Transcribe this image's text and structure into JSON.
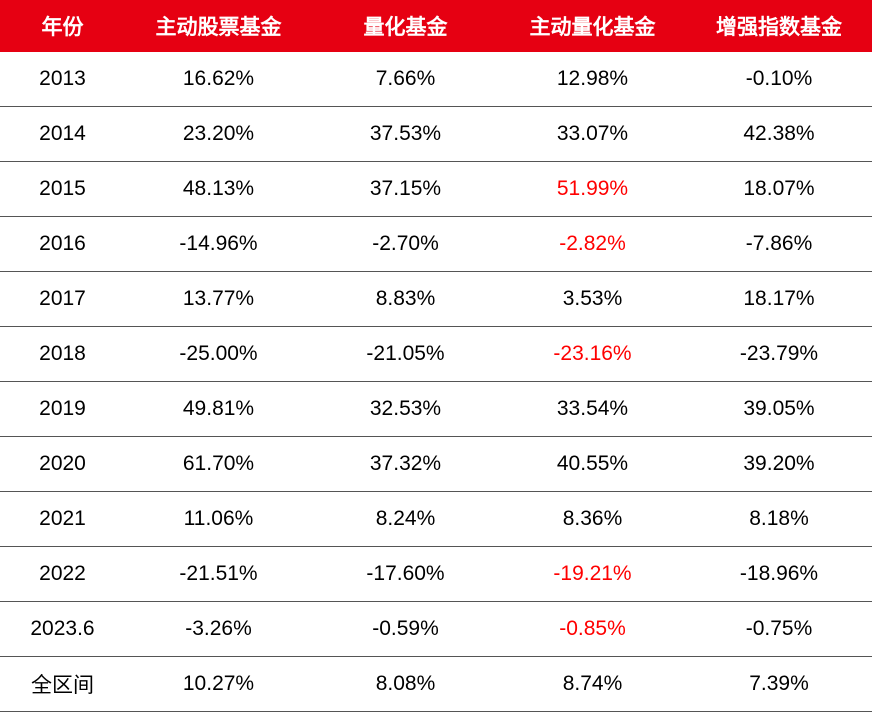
{
  "table": {
    "header": [
      "年份",
      "主动股票基金",
      "量化基金",
      "主动量化基金",
      "增强指数基金"
    ],
    "rows": [
      [
        "2013",
        "16.62%",
        "7.66%",
        "12.98%",
        "-0.10%"
      ],
      [
        "2014",
        "23.20%",
        "37.53%",
        "33.07%",
        "42.38%"
      ],
      [
        "2015",
        "48.13%",
        "37.15%",
        "51.99%",
        "18.07%"
      ],
      [
        "2016",
        "-14.96%",
        "-2.70%",
        "-2.82%",
        "-7.86%"
      ],
      [
        "2017",
        "13.77%",
        "8.83%",
        "3.53%",
        "18.17%"
      ],
      [
        "2018",
        "-25.00%",
        "-21.05%",
        "-23.16%",
        "-23.79%"
      ],
      [
        "2019",
        "49.81%",
        "32.53%",
        "33.54%",
        "39.05%"
      ],
      [
        "2020",
        "61.70%",
        "37.32%",
        "40.55%",
        "39.20%"
      ],
      [
        "2021",
        "11.06%",
        "8.24%",
        "8.36%",
        "8.18%"
      ],
      [
        "2022",
        "-21.51%",
        "-17.60%",
        "-19.21%",
        "-18.96%"
      ],
      [
        "2023.6",
        "-3.26%",
        "-0.59%",
        "-0.85%",
        "-0.75%"
      ],
      [
        "全区间",
        "10.27%",
        "8.08%",
        "8.74%",
        "7.39%"
      ]
    ],
    "header_color": "#e60012",
    "highlight": {
      "color": "#ff0000",
      "cells": [
        [
          2,
          3
        ],
        [
          3,
          3
        ],
        [
          5,
          3
        ],
        [
          9,
          3
        ],
        [
          10,
          3
        ]
      ]
    }
  }
}
